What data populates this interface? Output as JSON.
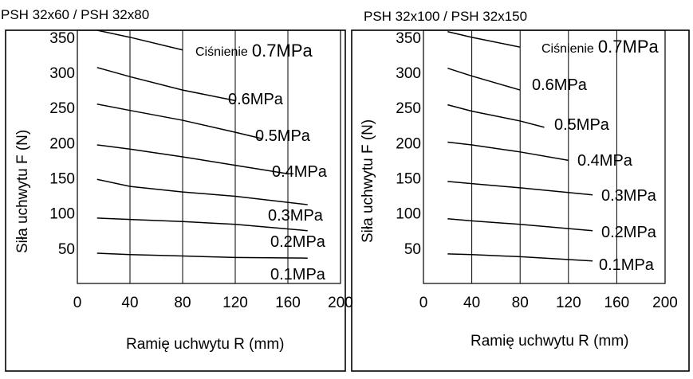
{
  "chart_data": [
    {
      "type": "line",
      "title": "PSH 32x60 / PSH 32x80",
      "xlabel": "Ramię uchwytu R (mm)",
      "ylabel": "Siła uchwytu  F (N)",
      "xlim": [
        0,
        200
      ],
      "ylim": [
        0,
        360
      ],
      "xticks": [
        0,
        40,
        80,
        120,
        160,
        200
      ],
      "yticks": [
        50,
        100,
        150,
        200,
        250,
        300,
        350
      ],
      "legend_title": "Ciśnienie",
      "grid": true,
      "series": [
        {
          "name": "0.7MPa",
          "x": [
            15,
            40,
            80
          ],
          "y": [
            360,
            350,
            332
          ]
        },
        {
          "name": "0.6MPa",
          "x": [
            15,
            40,
            80,
            120
          ],
          "y": [
            307,
            294,
            275,
            260
          ]
        },
        {
          "name": "0.5MPa",
          "x": [
            15,
            40,
            80,
            120,
            140
          ],
          "y": [
            255,
            246,
            232,
            215,
            206
          ]
        },
        {
          "name": "0.4MPa",
          "x": [
            15,
            40,
            80,
            120,
            160
          ],
          "y": [
            197,
            191,
            180,
            168,
            156
          ]
        },
        {
          "name": "0.3MPa",
          "x": [
            15,
            40,
            80,
            120,
            175
          ],
          "y": [
            148,
            138,
            130,
            124,
            112
          ]
        },
        {
          "name": "0.2MPa",
          "x": [
            15,
            40,
            80,
            120,
            175
          ],
          "y": [
            93,
            91,
            88,
            84,
            75
          ]
        },
        {
          "name": "0.1MPa",
          "x": [
            15,
            40,
            80,
            120,
            175
          ],
          "y": [
            43,
            41,
            39,
            37,
            36
          ]
        }
      ]
    },
    {
      "type": "line",
      "title": "PSH 32x100 / PSH 32x150",
      "xlabel": "Ramię uchwytu R (mm)",
      "ylabel": "Siła uchwytu  F (N)",
      "xlim": [
        0,
        200
      ],
      "ylim": [
        0,
        360
      ],
      "xticks": [
        0,
        40,
        80,
        120,
        160,
        200
      ],
      "yticks": [
        50,
        100,
        150,
        200,
        250,
        300,
        350
      ],
      "legend_title": "Ciśnienie",
      "grid": true,
      "series": [
        {
          "name": "0.7MPa",
          "x": [
            20,
            40,
            80
          ],
          "y": [
            358,
            350,
            336
          ]
        },
        {
          "name": "0.6MPa",
          "x": [
            20,
            40,
            80
          ],
          "y": [
            306,
            295,
            275
          ]
        },
        {
          "name": "0.5MPa",
          "x": [
            20,
            40,
            80,
            100
          ],
          "y": [
            254,
            245,
            231,
            222
          ]
        },
        {
          "name": "0.4MPa",
          "x": [
            20,
            40,
            80,
            120
          ],
          "y": [
            201,
            197,
            187,
            175
          ]
        },
        {
          "name": "0.3MPa",
          "x": [
            20,
            40,
            80,
            140
          ],
          "y": [
            145,
            142,
            136,
            126
          ]
        },
        {
          "name": "0.2MPa",
          "x": [
            20,
            40,
            80,
            140
          ],
          "y": [
            92,
            89,
            84,
            75
          ]
        },
        {
          "name": "0.1MPa",
          "x": [
            20,
            40,
            80,
            140
          ],
          "y": [
            42,
            41,
            38,
            32
          ]
        }
      ]
    }
  ]
}
